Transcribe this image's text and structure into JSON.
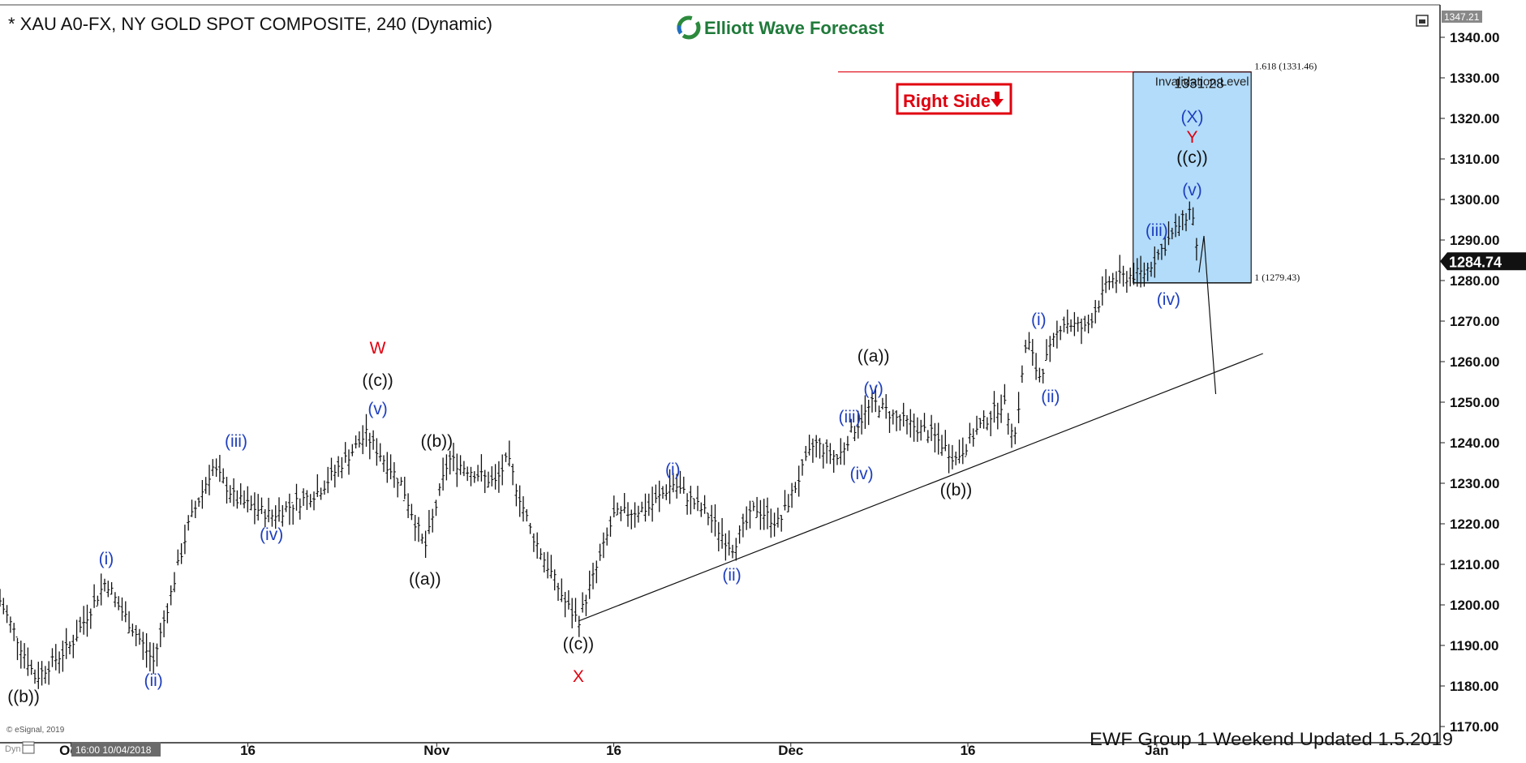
{
  "header": {
    "title": "* XAU A0-FX, NY GOLD SPOT COMPOSITE, 240 (Dynamic)",
    "brand": "Elliott Wave Forecast",
    "restore_icon": "window-restore-icon"
  },
  "footer": {
    "note": "EWF Group 1  Weekend  Updated 1.5.2019",
    "copyright": "© eSignal, 2019",
    "cursor_time": "16:00 10/04/2018",
    "dyn_label": "Dyn"
  },
  "badge": {
    "text": "Right Side",
    "color": "#e0000f"
  },
  "colors": {
    "blue": "#1f3fbf",
    "red": "#e0000f",
    "black": "#111111",
    "box_fill": "#b2dcfa",
    "box_stroke": "#1a1a1a"
  },
  "chart_data": {
    "type": "line",
    "price_axis": {
      "ticks": [
        "1340.00",
        "1330.00",
        "1320.00",
        "1310.00",
        "1300.00",
        "1290.00",
        "1280.00",
        "1270.00",
        "1260.00",
        "1250.00",
        "1240.00",
        "1230.00",
        "1220.00",
        "1210.00",
        "1200.00",
        "1190.00",
        "1180.00",
        "1170.00"
      ],
      "top_label": "1347.21",
      "last_price": "1284.74",
      "ylim": [
        1166,
        1348
      ]
    },
    "time_axis": {
      "labels": [
        {
          "text": "Oct",
          "x": "2018-10-01"
        },
        {
          "text": "16",
          "x": "2018-10-16"
        },
        {
          "text": "Nov",
          "x": "2018-11-01"
        },
        {
          "text": "16",
          "x": "2018-11-16"
        },
        {
          "text": "Dec",
          "x": "2018-12-01"
        },
        {
          "text": "16",
          "x": "2018-12-16"
        },
        {
          "text": "Jan",
          "x": "2019-01-01"
        }
      ],
      "xlim": [
        "2018-09-25",
        "2019-01-25"
      ]
    },
    "series": [
      {
        "points": [
          {
            "x": "2018-09-25",
            "y": 1201
          },
          {
            "x": "2018-09-28",
            "y": 1182
          },
          {
            "x": "2018-10-01",
            "y": 1190
          },
          {
            "x": "2018-10-04",
            "y": 1206
          },
          {
            "x": "2018-10-05",
            "y": 1200
          },
          {
            "x": "2018-10-08",
            "y": 1186
          },
          {
            "x": "2018-10-11",
            "y": 1220
          },
          {
            "x": "2018-10-13",
            "y": 1234
          },
          {
            "x": "2018-10-15",
            "y": 1226
          },
          {
            "x": "2018-10-18",
            "y": 1222
          },
          {
            "x": "2018-10-22",
            "y": 1228
          },
          {
            "x": "2018-10-24",
            "y": 1235
          },
          {
            "x": "2018-10-26",
            "y": 1242
          },
          {
            "x": "2018-10-29",
            "y": 1230
          },
          {
            "x": "2018-10-31",
            "y": 1214
          },
          {
            "x": "2018-11-01",
            "y": 1225
          },
          {
            "x": "2018-11-02",
            "y": 1236
          },
          {
            "x": "2018-11-06",
            "y": 1230
          },
          {
            "x": "2018-11-07",
            "y": 1236
          },
          {
            "x": "2018-11-09",
            "y": 1218
          },
          {
            "x": "2018-11-12",
            "y": 1200
          },
          {
            "x": "2018-11-13",
            "y": 1196
          },
          {
            "x": "2018-11-15",
            "y": 1213
          },
          {
            "x": "2018-11-16",
            "y": 1222
          },
          {
            "x": "2018-11-19",
            "y": 1224
          },
          {
            "x": "2018-11-21",
            "y": 1230
          },
          {
            "x": "2018-11-24",
            "y": 1222
          },
          {
            "x": "2018-11-26",
            "y": 1214
          },
          {
            "x": "2018-11-28",
            "y": 1224
          },
          {
            "x": "2018-11-30",
            "y": 1220
          },
          {
            "x": "2018-12-03",
            "y": 1240
          },
          {
            "x": "2018-12-05",
            "y": 1236
          },
          {
            "x": "2018-12-06",
            "y": 1242
          },
          {
            "x": "2018-12-08",
            "y": 1250
          },
          {
            "x": "2018-12-10",
            "y": 1246
          },
          {
            "x": "2018-12-13",
            "y": 1242
          },
          {
            "x": "2018-12-15",
            "y": 1236
          },
          {
            "x": "2018-12-17",
            "y": 1244
          },
          {
            "x": "2018-12-19",
            "y": 1250
          },
          {
            "x": "2018-12-20",
            "y": 1242
          },
          {
            "x": "2018-12-21",
            "y": 1266
          },
          {
            "x": "2018-12-22",
            "y": 1256
          },
          {
            "x": "2018-12-24",
            "y": 1270
          },
          {
            "x": "2018-12-26",
            "y": 1268
          },
          {
            "x": "2018-12-28",
            "y": 1280
          },
          {
            "x": "2018-12-31",
            "y": 1282
          },
          {
            "x": "2019-01-02",
            "y": 1290
          },
          {
            "x": "2019-01-03",
            "y": 1294
          },
          {
            "x": "2019-01-04",
            "y": 1298
          },
          {
            "x": "2019-01-04T12:00",
            "y": 1285
          }
        ]
      }
    ],
    "trendline": [
      {
        "x": "2018-11-13",
        "y": 1196
      },
      {
        "x": "2019-01-10",
        "y": 1262
      }
    ],
    "projection": [
      {
        "x": "2019-01-04T14:00",
        "y": 1282
      },
      {
        "x": "2019-01-05",
        "y": 1291
      },
      {
        "x": "2019-01-06",
        "y": 1252
      }
    ],
    "fib_box": {
      "x_start": "2018-12-30",
      "x_end": "2019-01-09",
      "top": 1331.46,
      "bottom": 1279.43,
      "top_label": "1.618 (1331.46)",
      "bottom_label": "1 (1279.43)",
      "invalidation_text": "Invalidation Level",
      "invalidation_value": "1331.28",
      "red_line_start": "2018-12-05"
    },
    "wave_labels": [
      {
        "text": "((b))",
        "x": "2018-09-27",
        "y": 1176,
        "color": "black"
      },
      {
        "text": "(i)",
        "x": "2018-10-04",
        "y": 1210,
        "color": "blue"
      },
      {
        "text": "(ii)",
        "x": "2018-10-08",
        "y": 1180,
        "color": "blue"
      },
      {
        "text": "(iii)",
        "x": "2018-10-15",
        "y": 1239,
        "color": "blue"
      },
      {
        "text": "(iv)",
        "x": "2018-10-18",
        "y": 1216,
        "color": "blue"
      },
      {
        "text": "W",
        "x": "2018-10-27",
        "y": 1262,
        "color": "red"
      },
      {
        "text": "((c))",
        "x": "2018-10-27",
        "y": 1254,
        "color": "black"
      },
      {
        "text": "(v)",
        "x": "2018-10-27",
        "y": 1247,
        "color": "blue"
      },
      {
        "text": "((a))",
        "x": "2018-10-31",
        "y": 1205,
        "color": "black"
      },
      {
        "text": "((b))",
        "x": "2018-11-01",
        "y": 1239,
        "color": "black"
      },
      {
        "text": "((c))",
        "x": "2018-11-13",
        "y": 1189,
        "color": "black"
      },
      {
        "text": "X",
        "x": "2018-11-13",
        "y": 1181,
        "color": "red"
      },
      {
        "text": "(i)",
        "x": "2018-11-21",
        "y": 1232,
        "color": "blue"
      },
      {
        "text": "(ii)",
        "x": "2018-11-26",
        "y": 1206,
        "color": "blue"
      },
      {
        "text": "(iii)",
        "x": "2018-12-06",
        "y": 1245,
        "color": "blue"
      },
      {
        "text": "(iv)",
        "x": "2018-12-07",
        "y": 1231,
        "color": "blue"
      },
      {
        "text": "((a))",
        "x": "2018-12-08",
        "y": 1260,
        "color": "black"
      },
      {
        "text": "(v)",
        "x": "2018-12-08",
        "y": 1252,
        "color": "blue"
      },
      {
        "text": "((b))",
        "x": "2018-12-15",
        "y": 1227,
        "color": "black"
      },
      {
        "text": "(i)",
        "x": "2018-12-22",
        "y": 1269,
        "color": "blue"
      },
      {
        "text": "(ii)",
        "x": "2018-12-23",
        "y": 1250,
        "color": "blue"
      },
      {
        "text": "(iii)",
        "x": "2019-01-01",
        "y": 1291,
        "color": "blue"
      },
      {
        "text": "(iv)",
        "x": "2019-01-02",
        "y": 1274,
        "color": "blue"
      },
      {
        "text": "(v)",
        "x": "2019-01-04",
        "y": 1301,
        "color": "blue"
      },
      {
        "text": "((c))",
        "x": "2019-01-04",
        "y": 1309,
        "color": "black"
      },
      {
        "text": "Y",
        "x": "2019-01-04",
        "y": 1314,
        "color": "red"
      },
      {
        "text": "(X)",
        "x": "2019-01-04",
        "y": 1319,
        "color": "blue"
      }
    ]
  }
}
